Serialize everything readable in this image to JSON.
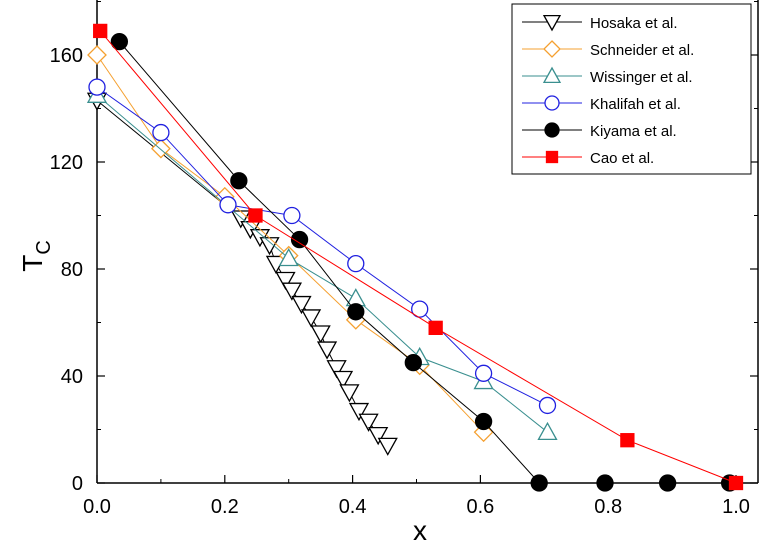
{
  "chart_data": {
    "type": "scatter",
    "xlabel": "x",
    "ylabel": "T",
    "ylabel_subscript": "C",
    "xlim": [
      0,
      1.03
    ],
    "ylim": [
      0,
      180
    ],
    "xticks": [
      0.0,
      0.2,
      0.4,
      0.6,
      0.8,
      1.0
    ],
    "xtick_labels": [
      "0.0",
      "0.2",
      "0.4",
      "0.6",
      "0.8",
      "1.0"
    ],
    "yticks": [
      0,
      40,
      80,
      120,
      160
    ],
    "ytick_labels": [
      "0",
      "40",
      "80",
      "120",
      "160"
    ],
    "grid": false,
    "legend_position": "top-right",
    "series": [
      {
        "name": "Hosaka et al.",
        "marker": "triangle-down",
        "filled": false,
        "color": "#000000",
        "x": [
          0.0,
          0.225,
          0.24,
          0.255,
          0.27,
          0.28,
          0.295,
          0.305,
          0.32,
          0.335,
          0.35,
          0.36,
          0.375,
          0.385,
          0.395,
          0.41,
          0.425,
          0.44,
          0.455
        ],
        "y": [
          143,
          99,
          95,
          92,
          89,
          82,
          76,
          72,
          67,
          62,
          56,
          50,
          43,
          39,
          34,
          27,
          23,
          18,
          14
        ]
      },
      {
        "name": "Schneider et al.",
        "marker": "diamond",
        "filled": false,
        "color": "#f5a030",
        "x": [
          0.0,
          0.1,
          0.2,
          0.3,
          0.405,
          0.505,
          0.605
        ],
        "y": [
          160,
          125,
          107,
          85,
          61,
          44,
          19
        ]
      },
      {
        "name": "Wissinger et al.",
        "marker": "triangle-up",
        "filled": false,
        "color": "#3a8f8f",
        "x": [
          0.0,
          0.3,
          0.405,
          0.505,
          0.605,
          0.705
        ],
        "y": [
          145,
          84,
          69,
          47,
          38,
          19
        ]
      },
      {
        "name": "Khalifah et al.",
        "marker": "circle",
        "filled": false,
        "color": "#2020e0",
        "x": [
          0.0,
          0.1,
          0.205,
          0.305,
          0.405,
          0.505,
          0.605,
          0.705
        ],
        "y": [
          148,
          131,
          104,
          100,
          82,
          65,
          41,
          29
        ]
      },
      {
        "name": "Kiyama et al.",
        "marker": "circle",
        "filled": true,
        "color": "#000000",
        "x": [
          0.035,
          0.222,
          0.317,
          0.405,
          0.495,
          0.605,
          0.692,
          0.795,
          0.893,
          0.99
        ],
        "y": [
          165,
          113,
          91,
          64,
          45,
          23,
          0,
          0,
          0,
          0
        ]
      },
      {
        "name": "Cao et al.",
        "marker": "square",
        "filled": true,
        "color": "#ff0000",
        "x": [
          0.005,
          0.248,
          0.53,
          0.83,
          1.0
        ],
        "y": [
          169,
          100,
          58,
          16,
          0
        ]
      }
    ]
  }
}
